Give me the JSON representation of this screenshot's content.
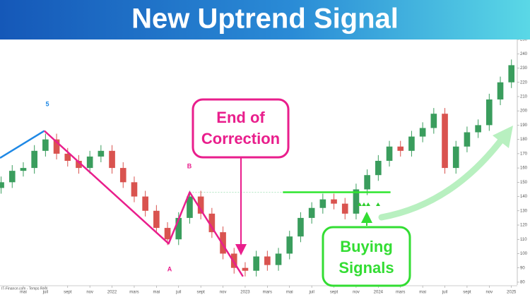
{
  "header": {
    "title": "New Uptrend Signal"
  },
  "chart_data": {
    "type": "candlestick",
    "source": "IT-Finance.com - Temps Réel",
    "x": [
      -2,
      -1,
      0,
      1,
      2,
      3,
      4,
      5,
      6,
      7,
      8,
      9,
      10,
      11,
      12,
      13,
      14,
      15,
      16,
      17,
      18,
      19,
      20,
      21,
      22,
      23,
      24,
      25,
      26,
      27,
      28,
      29,
      30,
      31,
      32,
      33,
      34,
      35,
      36,
      37,
      38,
      39,
      40,
      41,
      42,
      43,
      44
    ],
    "open": [
      146,
      150,
      158,
      160,
      172,
      180,
      170,
      165,
      160,
      168,
      172,
      160,
      150,
      140,
      130,
      118,
      110,
      125,
      140,
      128,
      115,
      100,
      90,
      88,
      98,
      92,
      100,
      112,
      125,
      132,
      138,
      135,
      128,
      145,
      155,
      165,
      175,
      172,
      182,
      188,
      198,
      160,
      175,
      185,
      190,
      208,
      220
    ],
    "high": [
      154,
      162,
      164,
      176,
      184,
      184,
      174,
      169,
      172,
      176,
      176,
      164,
      154,
      144,
      134,
      122,
      129,
      144,
      144,
      132,
      119,
      104,
      94,
      102,
      102,
      104,
      116,
      129,
      136,
      142,
      142,
      139,
      149,
      159,
      169,
      179,
      179,
      186,
      192,
      202,
      202,
      179,
      189,
      194,
      212,
      224,
      236
    ],
    "low": [
      142,
      146,
      154,
      156,
      168,
      166,
      161,
      156,
      156,
      164,
      156,
      146,
      136,
      126,
      114,
      106,
      106,
      121,
      124,
      111,
      96,
      86,
      84,
      84,
      88,
      88,
      96,
      108,
      121,
      128,
      131,
      124,
      124,
      141,
      151,
      161,
      168,
      168,
      178,
      184,
      156,
      156,
      171,
      181,
      186,
      204,
      216
    ],
    "close": [
      150,
      158,
      160,
      172,
      180,
      170,
      165,
      160,
      168,
      172,
      160,
      150,
      140,
      130,
      118,
      110,
      125,
      140,
      128,
      115,
      100,
      90,
      88,
      98,
      92,
      100,
      112,
      125,
      132,
      138,
      135,
      128,
      145,
      155,
      165,
      175,
      172,
      182,
      188,
      198,
      160,
      175,
      185,
      190,
      208,
      220,
      232
    ],
    "up_color": "#3a9d5d",
    "down_color": "#d9534f",
    "xlim": [
      -2.1,
      44.4
    ],
    "xticks": [
      {
        "value": 0,
        "label": "mai"
      },
      {
        "value": 2,
        "label": "juil"
      },
      {
        "value": 4,
        "label": "sept"
      },
      {
        "value": 6,
        "label": "nov"
      },
      {
        "value": 8,
        "label": "2022"
      },
      {
        "value": 10,
        "label": "mars"
      },
      {
        "value": 12,
        "label": "mai"
      },
      {
        "value": 14,
        "label": "juil"
      },
      {
        "value": 16,
        "label": "sept"
      },
      {
        "value": 18,
        "label": "nov"
      },
      {
        "value": 20,
        "label": "2023"
      },
      {
        "value": 22,
        "label": "mars"
      },
      {
        "value": 24,
        "label": "mai"
      },
      {
        "value": 26,
        "label": "juil"
      },
      {
        "value": 28,
        "label": "sept"
      },
      {
        "value": 30,
        "label": "nov"
      },
      {
        "value": 32,
        "label": "2024"
      },
      {
        "value": 34,
        "label": "mars"
      },
      {
        "value": 36,
        "label": "mai"
      },
      {
        "value": 38,
        "label": "juil"
      },
      {
        "value": 40,
        "label": "sept"
      },
      {
        "value": 42,
        "label": "nov"
      },
      {
        "value": 44,
        "label": "2025"
      }
    ],
    "ylim": [
      78,
      250
    ],
    "yticks": [
      80,
      90,
      100,
      110,
      120,
      130,
      140,
      150,
      160,
      170,
      180,
      190,
      200,
      210,
      220,
      230,
      240,
      250
    ],
    "wave_lines": [
      {
        "color": "#1e88e5",
        "x": [
          -2.1,
          1.9
        ],
        "y": [
          167,
          186
        ]
      },
      {
        "color": "#e91e8c",
        "x": [
          1.9,
          13.1,
          15,
          19.8
        ],
        "y": [
          186,
          107,
          143,
          84
        ]
      }
    ],
    "wave_labels": [
      "5",
      "B",
      "A"
    ],
    "signal_line": {
      "color": "#2ee62e",
      "level": 143,
      "x": [
        23.4,
        33.1
      ]
    },
    "callouts": [
      {
        "lines": [
          "End of",
          "Correction"
        ],
        "color": "#e91e8c"
      },
      {
        "lines": [
          "Buying",
          "Signals"
        ],
        "color": "#33dd33"
      }
    ]
  }
}
